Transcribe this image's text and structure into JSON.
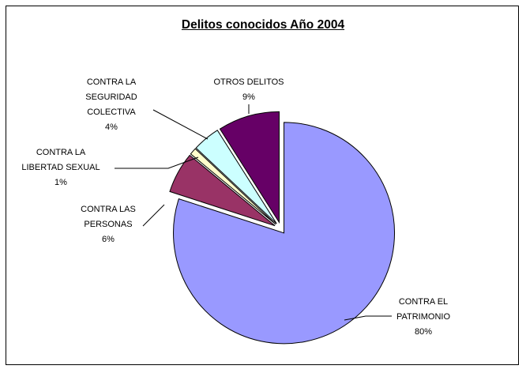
{
  "chart_data": {
    "type": "pie",
    "title": "Delitos conocidos Año 2004",
    "slices": [
      {
        "label_lines": [
          "CONTRA EL",
          "PATRIMONIO"
        ],
        "percent_label": "80%",
        "value": 80,
        "color": "#9999FF"
      },
      {
        "label_lines": [
          "CONTRA LAS",
          "PERSONAS"
        ],
        "percent_label": "6%",
        "value": 6,
        "color": "#993366"
      },
      {
        "label_lines": [
          "CONTRA LA",
          "LIBERTAD SEXUAL"
        ],
        "percent_label": "1%",
        "value": 1,
        "color": "#FFFFCC"
      },
      {
        "label_lines": [
          "CONTRA LA",
          "SEGURIDAD",
          "COLECTIVA"
        ],
        "percent_label": "4%",
        "value": 4,
        "color": "#CCFFFF"
      },
      {
        "label_lines": [
          "OTROS DELITOS"
        ],
        "percent_label": "9%",
        "value": 9,
        "color": "#660066"
      }
    ],
    "exploded": true,
    "legend": "none"
  }
}
